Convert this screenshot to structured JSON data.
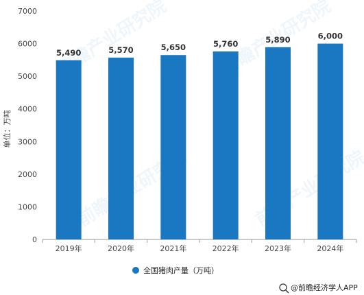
{
  "chart_data": {
    "type": "bar",
    "title": "",
    "xlabel": "",
    "ylabel": "单位：万吨",
    "categories": [
      "2019年",
      "2020年",
      "2021年",
      "2022年",
      "2023年",
      "2024年"
    ],
    "series": [
      {
        "name": "全国猪肉产量（万吨）",
        "values": [
          5490,
          5570,
          5650,
          5760,
          5890,
          6000
        ]
      }
    ],
    "data_labels": [
      "5,490",
      "5,570",
      "5,650",
      "5,760",
      "5,890",
      "6,000"
    ],
    "ylim": [
      0,
      7000
    ],
    "yticks": [
      0,
      1000,
      2000,
      3000,
      4000,
      5000,
      6000,
      7000
    ],
    "grid": false,
    "legend_position": "bottom",
    "bar_color": "#1a78c2"
  },
  "footer": {
    "source_text": "@前瞻经济学人APP"
  },
  "watermark": {
    "text": "前瞻产业研究院"
  }
}
